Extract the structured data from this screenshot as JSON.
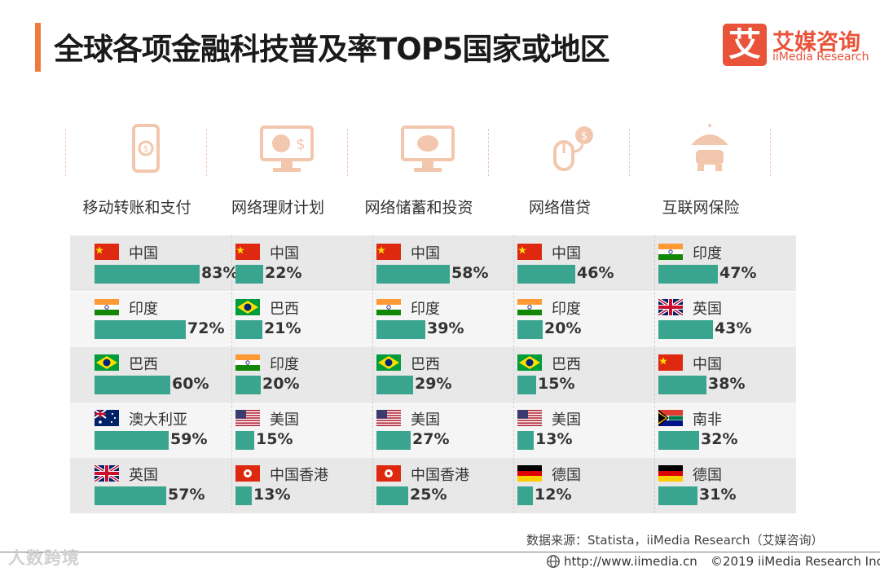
{
  "title": "全球各项金融科技普及率TOP5国家或地区",
  "logo": {
    "mark": "艾",
    "name_cn": "艾媒咨询",
    "name_en": "iiMedia Research"
  },
  "colors": {
    "accent": "#f07a3c",
    "bar": "#3aa58e",
    "icon": "#f3c7ae",
    "brand": "#e9533a"
  },
  "chart_data": {
    "type": "bar",
    "title": "全球各项金融科技普及率TOP5国家或地区",
    "unit": "%",
    "categories": [
      "移动转账和支付",
      "网络理财计划",
      "网络储蓄和投资",
      "网络借贷",
      "互联网保险"
    ],
    "series": [
      {
        "name": "移动转账和支付",
        "icon": "mobile-payment-icon",
        "items": [
          {
            "country": "中国",
            "flag": "cn",
            "value": 83,
            "label": "83%"
          },
          {
            "country": "印度",
            "flag": "in",
            "value": 72,
            "label": "72%"
          },
          {
            "country": "巴西",
            "flag": "br",
            "value": 60,
            "label": "60%"
          },
          {
            "country": "澳大利亚",
            "flag": "au",
            "value": 59,
            "label": "59%"
          },
          {
            "country": "英国",
            "flag": "gb",
            "value": 57,
            "label": "57%"
          }
        ]
      },
      {
        "name": "网络理财计划",
        "icon": "financial-plan-icon",
        "items": [
          {
            "country": "中国",
            "flag": "cn",
            "value": 22,
            "label": "22%"
          },
          {
            "country": "巴西",
            "flag": "br",
            "value": 21,
            "label": "21%"
          },
          {
            "country": "印度",
            "flag": "in",
            "value": 20,
            "label": "20%"
          },
          {
            "country": "美国",
            "flag": "us",
            "value": 15,
            "label": "15%"
          },
          {
            "country": "中国香港",
            "flag": "hk",
            "value": 13,
            "label": "13%"
          }
        ]
      },
      {
        "name": "网络储蓄和投资",
        "icon": "piggy-bank-icon",
        "items": [
          {
            "country": "中国",
            "flag": "cn",
            "value": 58,
            "label": "58%"
          },
          {
            "country": "印度",
            "flag": "in",
            "value": 39,
            "label": "39%"
          },
          {
            "country": "巴西",
            "flag": "br",
            "value": 29,
            "label": "29%"
          },
          {
            "country": "美国",
            "flag": "us",
            "value": 27,
            "label": "27%"
          },
          {
            "country": "中国香港",
            "flag": "hk",
            "value": 25,
            "label": "25%"
          }
        ]
      },
      {
        "name": "网络借贷",
        "icon": "online-loan-icon",
        "items": [
          {
            "country": "中国",
            "flag": "cn",
            "value": 46,
            "label": "46%"
          },
          {
            "country": "印度",
            "flag": "in",
            "value": 20,
            "label": "20%"
          },
          {
            "country": "巴西",
            "flag": "br",
            "value": 15,
            "label": "15%"
          },
          {
            "country": "美国",
            "flag": "us",
            "value": 13,
            "label": "13%"
          },
          {
            "country": "德国",
            "flag": "de",
            "value": 12,
            "label": "12%"
          }
        ]
      },
      {
        "name": "互联网保险",
        "icon": "insurance-umbrella-icon",
        "items": [
          {
            "country": "印度",
            "flag": "in",
            "value": 47,
            "label": "47%"
          },
          {
            "country": "英国",
            "flag": "gb",
            "value": 43,
            "label": "43%"
          },
          {
            "country": "中国",
            "flag": "cn",
            "value": 38,
            "label": "38%"
          },
          {
            "country": "南非",
            "flag": "za",
            "value": 32,
            "label": "32%"
          },
          {
            "country": "德国",
            "flag": "de",
            "value": 31,
            "label": "31%"
          }
        ]
      }
    ]
  },
  "footer": {
    "source": "数据来源：Statista，iiMedia Research（艾媒咨询）",
    "url": "http://www.iimedia.cn",
    "copyright": "©2019  iiMedia Research  Inc",
    "watermark": "人数跨境"
  }
}
